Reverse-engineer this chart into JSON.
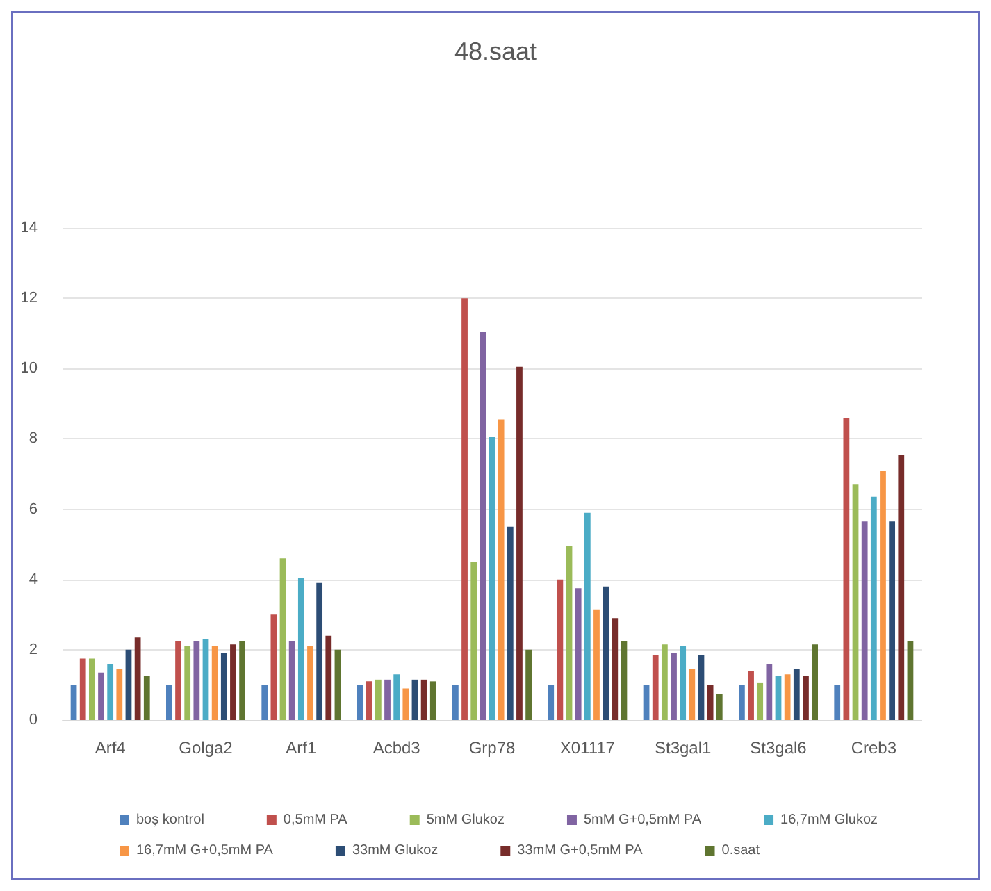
{
  "chart_data": {
    "type": "bar",
    "title": "48.saat",
    "categories": [
      "Arf4",
      "Golga2",
      "Arf1",
      "Acbd3",
      "Grp78",
      "X01117",
      "St3gal1",
      "St3gal6",
      "Creb3"
    ],
    "series": [
      {
        "name": "boş kontrol",
        "color": "#4f81bd",
        "values": [
          1.0,
          1.0,
          1.0,
          1.0,
          1.0,
          1.0,
          1.0,
          1.0,
          1.0
        ]
      },
      {
        "name": "0,5mM PA",
        "color": "#c0504d",
        "values": [
          1.75,
          2.25,
          3.0,
          1.1,
          12.0,
          4.0,
          1.85,
          1.4,
          8.6
        ]
      },
      {
        "name": "5mM Glukoz",
        "color": "#9bbb59",
        "values": [
          1.75,
          2.1,
          4.6,
          1.15,
          4.5,
          4.95,
          2.15,
          1.05,
          6.7
        ]
      },
      {
        "name": "5mM G+0,5mM PA",
        "color": "#8064a2",
        "values": [
          1.35,
          2.25,
          2.25,
          1.15,
          11.05,
          3.75,
          1.9,
          1.6,
          5.65
        ]
      },
      {
        "name": "16,7mM Glukoz",
        "color": "#4bacc6",
        "values": [
          1.6,
          2.3,
          4.05,
          1.3,
          8.05,
          5.9,
          2.1,
          1.25,
          6.35
        ]
      },
      {
        "name": "16,7mM G+0,5mM PA",
        "color": "#f79646",
        "values": [
          1.45,
          2.1,
          2.1,
          0.9,
          8.55,
          3.15,
          1.45,
          1.3,
          7.1
        ]
      },
      {
        "name": "33mM Glukoz",
        "color": "#2c4d75",
        "values": [
          2.0,
          1.9,
          3.9,
          1.15,
          5.5,
          3.8,
          1.85,
          1.45,
          5.65
        ]
      },
      {
        "name": "33mM G+0,5mM PA",
        "color": "#772c2a",
        "values": [
          2.35,
          2.15,
          2.4,
          1.15,
          10.05,
          2.9,
          1.0,
          1.25,
          7.55
        ]
      },
      {
        "name": "0.saat",
        "color": "#5f7530",
        "values": [
          1.25,
          2.25,
          2.0,
          1.1,
          2.0,
          2.25,
          0.75,
          2.15,
          2.25
        ]
      }
    ],
    "ylim": [
      0,
      14
    ],
    "yticks": [
      0,
      2,
      4,
      6,
      8,
      10,
      12,
      14
    ],
    "grid": "y",
    "legend": "bottom"
  }
}
